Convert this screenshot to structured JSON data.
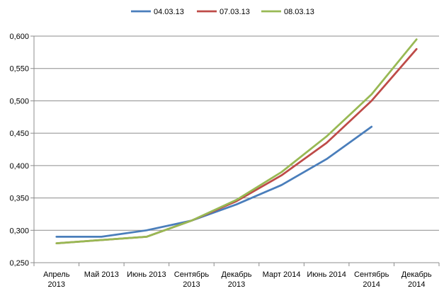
{
  "chart_data": {
    "type": "line",
    "title": "",
    "xlabel": "",
    "ylabel": "",
    "categories": [
      [
        "Апрель",
        "2013"
      ],
      [
        "Май 2013"
      ],
      [
        "Июнь 2013"
      ],
      [
        "Сентябрь",
        "2013"
      ],
      [
        "Декабрь",
        "2013"
      ],
      [
        "Март 2014"
      ],
      [
        "Июнь 2014"
      ],
      [
        "Сентябрь",
        "2014"
      ],
      [
        "Декабрь",
        "2014"
      ]
    ],
    "ylim": [
      0.25,
      0.6
    ],
    "yticks": [
      "0,250",
      "0,300",
      "0,350",
      "0,400",
      "0,450",
      "0,500",
      "0,550",
      "0,600"
    ],
    "grid": "horizontal",
    "legend_position": "top",
    "series": [
      {
        "name": "04.03.13",
        "color": "#4a7ebb",
        "values": [
          0.29,
          0.29,
          0.3,
          0.315,
          0.34,
          0.37,
          0.41,
          0.46,
          null
        ]
      },
      {
        "name": "07.03.13",
        "color": "#be4b48",
        "values": [
          0.28,
          0.285,
          0.29,
          0.315,
          0.345,
          0.385,
          0.435,
          0.5,
          0.58
        ]
      },
      {
        "name": "08.03.13",
        "color": "#98b954",
        "values": [
          0.28,
          0.285,
          0.29,
          0.315,
          0.347,
          0.39,
          0.445,
          0.51,
          0.595
        ]
      }
    ]
  }
}
